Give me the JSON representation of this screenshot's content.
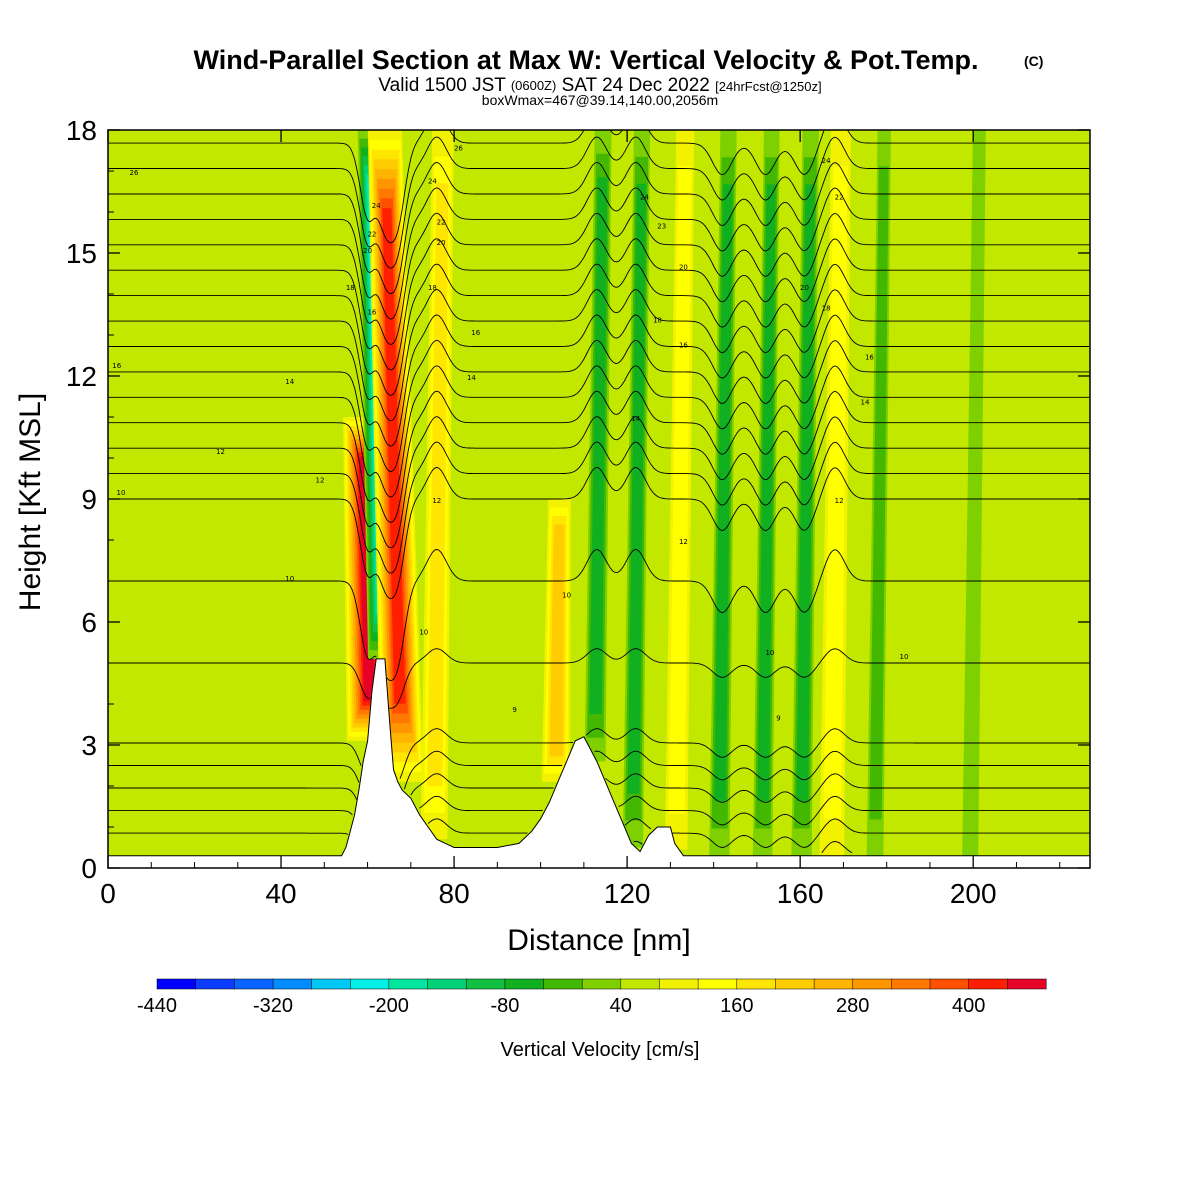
{
  "title": {
    "main": "Wind-Parallel Section at Max W: Vertical Velocity & Pot.Temp.",
    "copyright": "(C)",
    "valid_a": "Valid 1500 JST",
    "valid_b": "(0600Z)",
    "valid_c": "SAT 24 Dec 2022",
    "valid_d": "[24hrFcst@1250z]",
    "box": "boxWmax=467@39.14,140.00,2056m"
  },
  "chart_data": {
    "type": "heatmap",
    "xlabel": "Distance [nm]",
    "ylabel": "Height [Kft MSL]",
    "xlim": [
      0,
      227
    ],
    "ylim": [
      0,
      18
    ],
    "xticks": [
      0,
      40,
      80,
      120,
      160,
      200
    ],
    "yticks": [
      0,
      3,
      6,
      9,
      12,
      15,
      18
    ],
    "colorbar": {
      "label": "Vertical Velocity [cm/s]",
      "tick_labels": [
        "-440",
        "-320",
        "-200",
        "-80",
        "40",
        "160",
        "280",
        "400"
      ],
      "tick_values": [
        -440,
        -320,
        -200,
        -80,
        40,
        160,
        280,
        400
      ],
      "bounds": [
        -440,
        480
      ],
      "step": 40,
      "colors": [
        "#0000ff",
        "#0b3cff",
        "#0a64ff",
        "#008cff",
        "#00c8f5",
        "#00f0e6",
        "#00e6a0",
        "#00d278",
        "#10c040",
        "#10b020",
        "#44b800",
        "#7ed000",
        "#c2e800",
        "#f2f200",
        "#ffff00",
        "#ffe600",
        "#ffcc00",
        "#ffb400",
        "#ff9600",
        "#ff7800",
        "#ff5000",
        "#ff1e00",
        "#e60028",
        "#c00040",
        "#a00058",
        "#7a0068",
        "#580078",
        "#480080",
        "#3a0090"
      ]
    },
    "terrain": [
      [
        0,
        0.3
      ],
      [
        10,
        0.3
      ],
      [
        20,
        0.3
      ],
      [
        30,
        0.3
      ],
      [
        40,
        0.3
      ],
      [
        50,
        0.3
      ],
      [
        54,
        0.3
      ],
      [
        55,
        0.5
      ],
      [
        56,
        0.9
      ],
      [
        57,
        1.3
      ],
      [
        58,
        1.9
      ],
      [
        59,
        2.6
      ],
      [
        60,
        3.1
      ],
      [
        61,
        4.3
      ],
      [
        62,
        5.1
      ],
      [
        64,
        5.1
      ],
      [
        65,
        3.7
      ],
      [
        66,
        2.4
      ],
      [
        67,
        2.1
      ],
      [
        68,
        1.9
      ],
      [
        70,
        1.7
      ],
      [
        72,
        1.3
      ],
      [
        74,
        1.0
      ],
      [
        76,
        0.7
      ],
      [
        78,
        0.6
      ],
      [
        80,
        0.5
      ],
      [
        85,
        0.5
      ],
      [
        90,
        0.5
      ],
      [
        95,
        0.6
      ],
      [
        98,
        0.9
      ],
      [
        100,
        1.2
      ],
      [
        102,
        1.6
      ],
      [
        104,
        2.1
      ],
      [
        106,
        2.6
      ],
      [
        108,
        3.1
      ],
      [
        110,
        3.2
      ],
      [
        111,
        3.0
      ],
      [
        113,
        2.6
      ],
      [
        115,
        2.1
      ],
      [
        117,
        1.6
      ],
      [
        119,
        1.1
      ],
      [
        121,
        0.6
      ],
      [
        123,
        0.4
      ],
      [
        125,
        0.8
      ],
      [
        127,
        1.0
      ],
      [
        130,
        1.0
      ],
      [
        131,
        0.6
      ],
      [
        133,
        0.3
      ],
      [
        140,
        0.3
      ],
      [
        160,
        0.3
      ],
      [
        200,
        0.3
      ],
      [
        227,
        0.3
      ]
    ],
    "w_field": {
      "background_cm_s": 40,
      "features": [
        {
          "x": 60,
          "z_top": 11,
          "w": 470,
          "desc": "updraft core"
        },
        {
          "x": 64,
          "z_top": 18,
          "w": -300,
          "desc": "downdraft core"
        },
        {
          "x": 67,
          "z_top": 18,
          "w": 400,
          "desc": "upper updraft"
        },
        {
          "x": 76,
          "z_top": 18,
          "w": 180
        },
        {
          "x": 104,
          "z_top": 9,
          "w": 200
        },
        {
          "x": 113,
          "z_top": 18,
          "w": -100
        },
        {
          "x": 122,
          "z_top": 18,
          "w": -90
        },
        {
          "x": 132,
          "z_top": 18,
          "w": 120
        },
        {
          "x": 142,
          "z_top": 18,
          "w": -90
        },
        {
          "x": 152,
          "z_top": 18,
          "w": -80
        },
        {
          "x": 161,
          "z_top": 18,
          "w": -90
        },
        {
          "x": 168,
          "z_top": 18,
          "w": 150
        },
        {
          "x": 178,
          "z_top": 18,
          "w": -40
        },
        {
          "x": 200,
          "z_top": 18,
          "w": -30
        }
      ]
    },
    "theta_contours": {
      "interval_C": 1,
      "min_C": 4,
      "max_C": 28,
      "labels": [
        {
          "text": "26",
          "x": 6,
          "z": 16.9
        },
        {
          "text": "24",
          "x": 62,
          "z": 16.1
        },
        {
          "text": "26",
          "x": 81,
          "z": 17.5
        },
        {
          "text": "24",
          "x": 75,
          "z": 16.7
        },
        {
          "text": "22",
          "x": 77,
          "z": 15.7
        },
        {
          "text": "22",
          "x": 61,
          "z": 15.4
        },
        {
          "text": "20",
          "x": 60,
          "z": 15.0
        },
        {
          "text": "20",
          "x": 77,
          "z": 15.2
        },
        {
          "text": "18",
          "x": 56,
          "z": 14.1
        },
        {
          "text": "18",
          "x": 75,
          "z": 14.1
        },
        {
          "text": "16",
          "x": 61,
          "z": 13.5
        },
        {
          "text": "16",
          "x": 85,
          "z": 13.0
        },
        {
          "text": "16",
          "x": 2,
          "z": 12.2
        },
        {
          "text": "14",
          "x": 42,
          "z": 11.8
        },
        {
          "text": "14",
          "x": 84,
          "z": 11.9
        },
        {
          "text": "12",
          "x": 26,
          "z": 10.1
        },
        {
          "text": "12",
          "x": 49,
          "z": 9.4
        },
        {
          "text": "12",
          "x": 76,
          "z": 8.9
        },
        {
          "text": "10",
          "x": 3,
          "z": 9.1
        },
        {
          "text": "10",
          "x": 42,
          "z": 7.0
        },
        {
          "text": "10",
          "x": 73,
          "z": 5.7
        },
        {
          "text": "9",
          "x": 94,
          "z": 3.8
        },
        {
          "text": "10",
          "x": 106,
          "z": 6.6
        },
        {
          "text": "24",
          "x": 124,
          "z": 16.3
        },
        {
          "text": "23",
          "x": 128,
          "z": 15.6
        },
        {
          "text": "20",
          "x": 133,
          "z": 14.6
        },
        {
          "text": "18",
          "x": 127,
          "z": 13.3
        },
        {
          "text": "16",
          "x": 133,
          "z": 12.7
        },
        {
          "text": "14",
          "x": 122,
          "z": 10.9
        },
        {
          "text": "12",
          "x": 133,
          "z": 7.9
        },
        {
          "text": "10",
          "x": 153,
          "z": 5.2
        },
        {
          "text": "9",
          "x": 155,
          "z": 3.6
        },
        {
          "text": "24",
          "x": 166,
          "z": 17.2
        },
        {
          "text": "22",
          "x": 169,
          "z": 16.3
        },
        {
          "text": "20",
          "x": 161,
          "z": 14.1
        },
        {
          "text": "18",
          "x": 166,
          "z": 13.6
        },
        {
          "text": "16",
          "x": 176,
          "z": 12.4
        },
        {
          "text": "14",
          "x": 175,
          "z": 11.3
        },
        {
          "text": "12",
          "x": 169,
          "z": 8.9
        },
        {
          "text": "10",
          "x": 184,
          "z": 5.1
        }
      ]
    }
  }
}
